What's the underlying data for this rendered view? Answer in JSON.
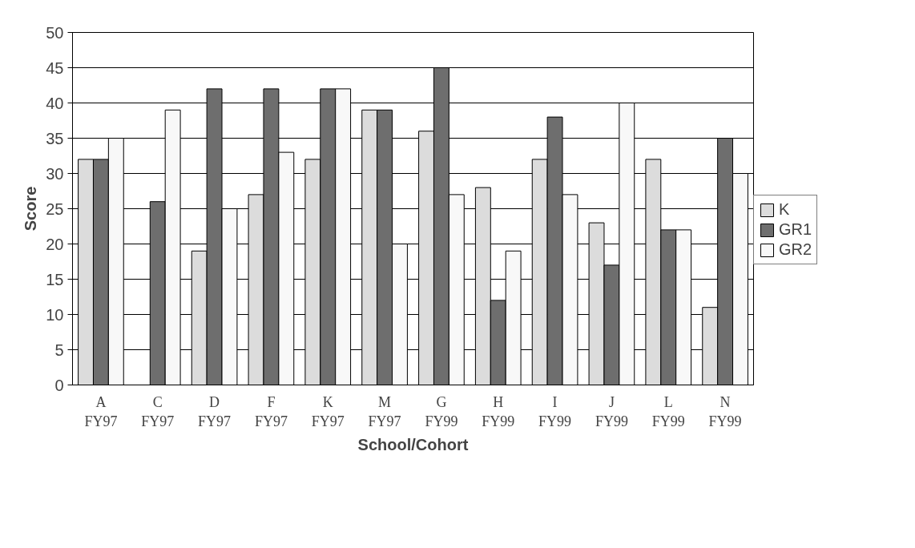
{
  "chart_data": {
    "type": "bar",
    "xlabel": "School/Cohort",
    "ylabel": "Score",
    "categories": [
      "A\nFY97",
      "C\nFY97",
      "D\nFY97",
      "F\nFY97",
      "K\nFY97",
      "M\nFY97",
      "G\nFY99",
      "H\nFY99",
      "I\nFY99",
      "J\nFY99",
      "L\nFY99",
      "N\nFY99"
    ],
    "series": [
      {
        "name": "K",
        "color": "#dcdcdc",
        "values": [
          32,
          null,
          19,
          27,
          32,
          39,
          36,
          28,
          32,
          23,
          32,
          11
        ]
      },
      {
        "name": "GR1",
        "color": "#6e6e6e",
        "values": [
          32,
          26,
          42,
          42,
          42,
          39,
          45,
          12,
          38,
          17,
          22,
          35
        ]
      },
      {
        "name": "GR2",
        "color": "#f8f8f8",
        "values": [
          35,
          39,
          25,
          33,
          42,
          20,
          27,
          19,
          27,
          40,
          22,
          30
        ]
      }
    ],
    "ylim": [
      0,
      50
    ],
    "yticks": [
      0,
      5,
      10,
      15,
      20,
      25,
      30,
      35,
      40,
      45,
      50
    ],
    "grid": "y",
    "legend": "right"
  }
}
